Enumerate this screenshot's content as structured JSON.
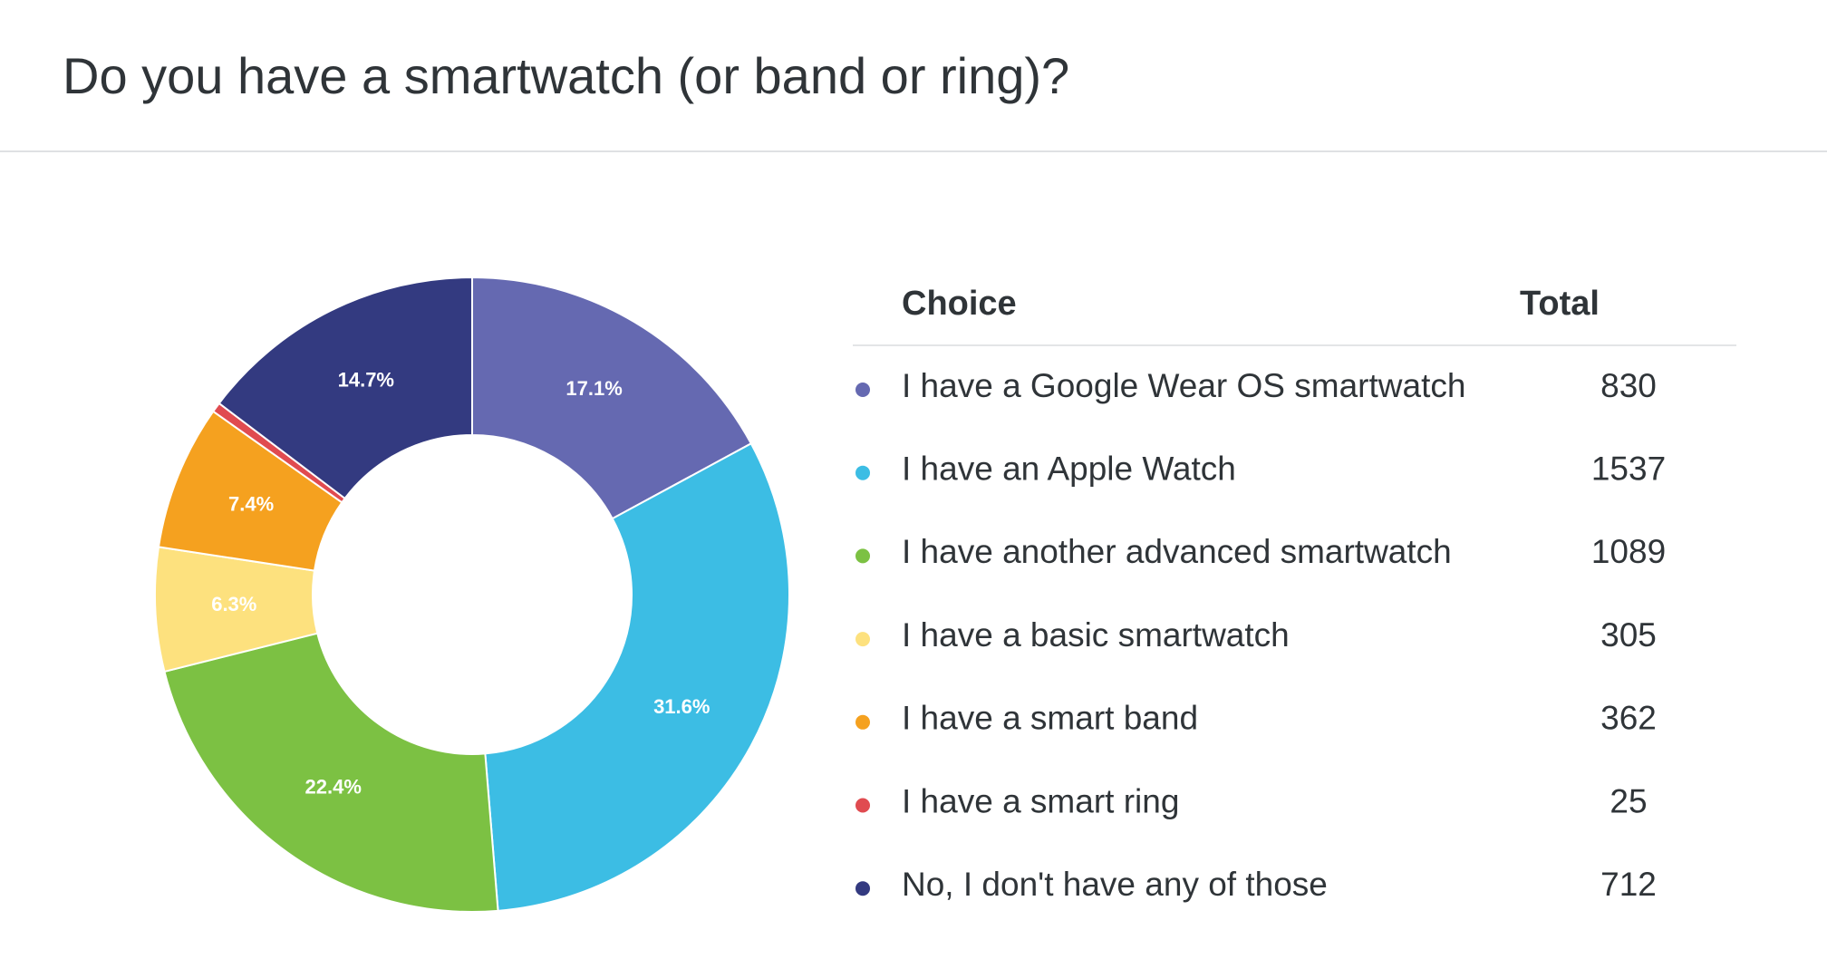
{
  "chart_data": {
    "type": "pie",
    "title": "Do you have a smartwatch (or band or ring)?",
    "categories": [
      "I have a Google Wear OS smartwatch",
      "I have an Apple Watch",
      "I have another advanced smartwatch",
      "I have a basic smartwatch",
      "I have a smart band",
      "I have a smart ring",
      "No, I don't have any of those"
    ],
    "values": [
      17.1,
      31.6,
      22.4,
      6.3,
      7.4,
      0.5,
      14.7
    ],
    "value_labels": [
      "17.1%",
      "31.6%",
      "22.4%",
      "6.3%",
      "7.4%",
      null,
      "14.7%"
    ],
    "colors": [
      "#6569b1",
      "#3cbde4",
      "#7cc143",
      "#fde17e",
      "#f5a11f",
      "#e04b50",
      "#333a80"
    ],
    "table_headers": [
      "Choice",
      "Total"
    ],
    "totals": [
      830,
      1537,
      1089,
      305,
      362,
      25,
      712
    ]
  }
}
